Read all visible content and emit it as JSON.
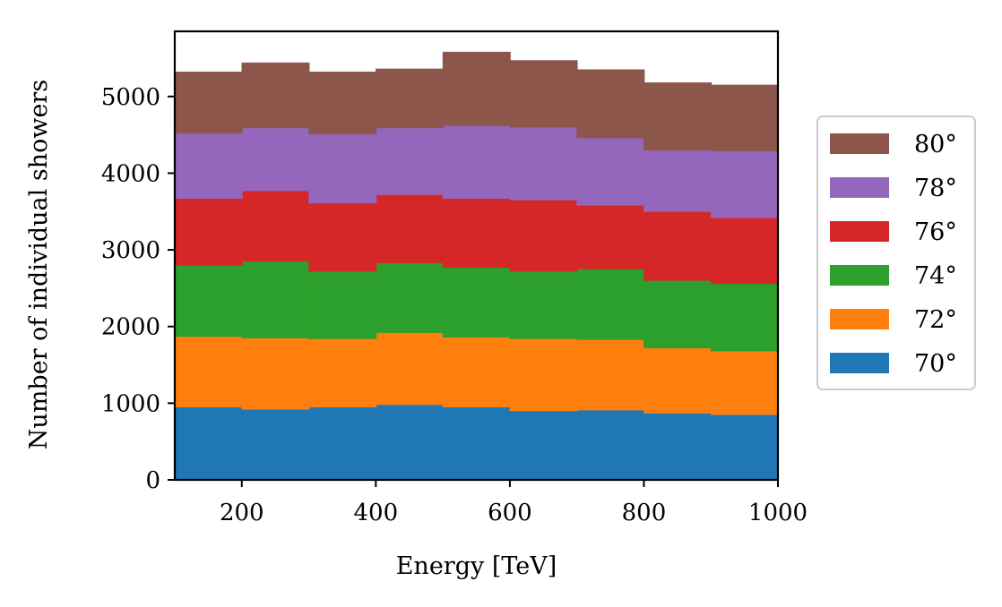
{
  "chart_data": {
    "type": "bar",
    "stacked": true,
    "histogram": true,
    "title": "",
    "xlabel": "Energy [TeV]",
    "ylabel": "Number of individual showers",
    "xlim": [
      100,
      1000
    ],
    "ylim": [
      0,
      5850
    ],
    "xticks": [
      200,
      400,
      600,
      800,
      1000
    ],
    "yticks": [
      0,
      1000,
      2000,
      3000,
      4000,
      5000
    ],
    "bin_edges": [
      100,
      200,
      300,
      400,
      500,
      600,
      700,
      800,
      900,
      1000
    ],
    "legend_position": "right",
    "grid": false,
    "series": [
      {
        "name": "70°",
        "color": "#1f77b4",
        "values": [
          950,
          920,
          950,
          980,
          950,
          900,
          910,
          870,
          850
        ]
      },
      {
        "name": "72°",
        "color": "#ff7f0e",
        "values": [
          920,
          930,
          890,
          940,
          910,
          940,
          920,
          850,
          830
        ]
      },
      {
        "name": "74°",
        "color": "#2ca02c",
        "values": [
          930,
          1000,
          880,
          910,
          910,
          880,
          920,
          880,
          880
        ]
      },
      {
        "name": "76°",
        "color": "#d62728",
        "values": [
          870,
          920,
          890,
          890,
          900,
          930,
          830,
          900,
          860
        ]
      },
      {
        "name": "78°",
        "color": "#9467bd",
        "values": [
          850,
          820,
          900,
          870,
          950,
          950,
          880,
          800,
          870
        ]
      },
      {
        "name": "80°",
        "color": "#8c564b",
        "values": [
          800,
          850,
          810,
          770,
          960,
          870,
          890,
          880,
          860
        ]
      }
    ]
  }
}
